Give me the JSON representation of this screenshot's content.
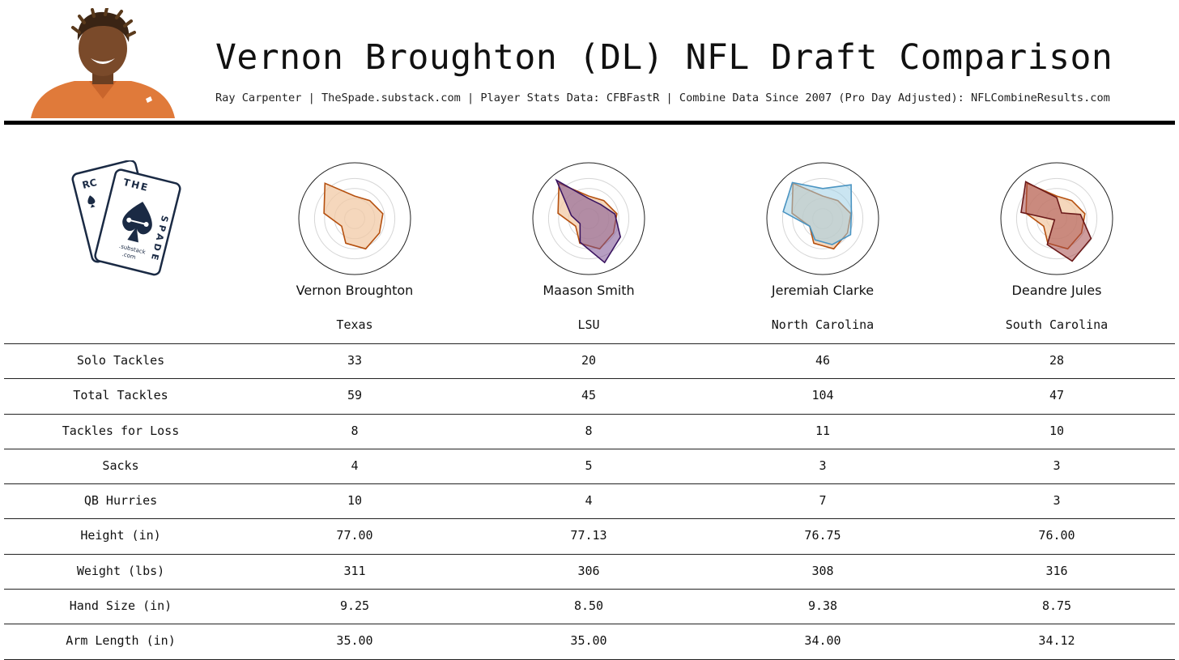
{
  "header": {
    "title": "Vernon Broughton (DL) NFL Draft Comparison",
    "subtitle": "Ray Carpenter | TheSpade.substack.com | Player Stats Data: CFBFastR | Combine Data Since 2007 (Pro Day Adjusted): NFLCombineResults.com"
  },
  "logo": {
    "back_card_letters": "RC",
    "front_card_top": "THE",
    "front_card_side": "SPADE",
    "front_card_small": ".substack",
    "front_card_small2": ".com"
  },
  "colors": {
    "primary_fill": "#f2c9a6",
    "primary_stroke": "#b5500f",
    "smith_fill": "#7a4f8f",
    "smith_stroke": "#3a1460",
    "clarke_fill": "#9fcfe6",
    "clarke_stroke": "#4a94c2",
    "jules_fill": "#a54a4a",
    "jules_stroke": "#6b1a1a",
    "ink": "#111111"
  },
  "players": [
    {
      "name": "Vernon Broughton",
      "school": "Texas"
    },
    {
      "name": "Maason Smith",
      "school": "LSU"
    },
    {
      "name": "Jeremiah Clarke",
      "school": "North Carolina"
    },
    {
      "name": "Deandre Jules",
      "school": "South Carolina"
    }
  ],
  "stat_rows": [
    {
      "label": "Solo Tackles",
      "values": [
        "33",
        "20",
        "46",
        "28"
      ]
    },
    {
      "label": "Total Tackles",
      "values": [
        "59",
        "45",
        "104",
        "47"
      ]
    },
    {
      "label": "Tackles for Loss",
      "values": [
        "8",
        "8",
        "11",
        "10"
      ]
    },
    {
      "label": "Sacks",
      "values": [
        "4",
        "5",
        "3",
        "3"
      ]
    },
    {
      "label": "QB Hurries",
      "values": [
        "10",
        "4",
        "7",
        "3"
      ]
    },
    {
      "label": "Height (in)",
      "values": [
        "77.00",
        "77.13",
        "76.75",
        "76.00"
      ]
    },
    {
      "label": "Weight (lbs)",
      "values": [
        "311",
        "306",
        "308",
        "316"
      ]
    },
    {
      "label": "Hand Size (in)",
      "values": [
        "9.25",
        "8.50",
        "9.38",
        "8.75"
      ]
    },
    {
      "label": "Arm Length (in)",
      "values": [
        "35.00",
        "35.00",
        "34.00",
        "34.12"
      ]
    }
  ],
  "chart_data": {
    "type": "radar",
    "axes_count": 9,
    "rlim": [
      0,
      1
    ],
    "grid": true,
    "series": [
      {
        "values": [
          0.45,
          0.47,
          0.57,
          0.57,
          0.64,
          0.52,
          0.3,
          0.62,
          0.92
        ]
      },
      {
        "values": [
          0.4,
          0.37,
          0.53,
          0.73,
          0.93,
          0.5,
          0.2,
          0.35,
          1.0
        ]
      },
      {
        "values": [
          0.6,
          0.88,
          0.58,
          0.64,
          0.55,
          0.45,
          0.3,
          0.8,
          0.94
        ]
      },
      {
        "values": [
          0.42,
          0.15,
          0.48,
          0.79,
          0.9,
          0.55,
          0.05,
          0.72,
          0.96
        ]
      }
    ]
  }
}
